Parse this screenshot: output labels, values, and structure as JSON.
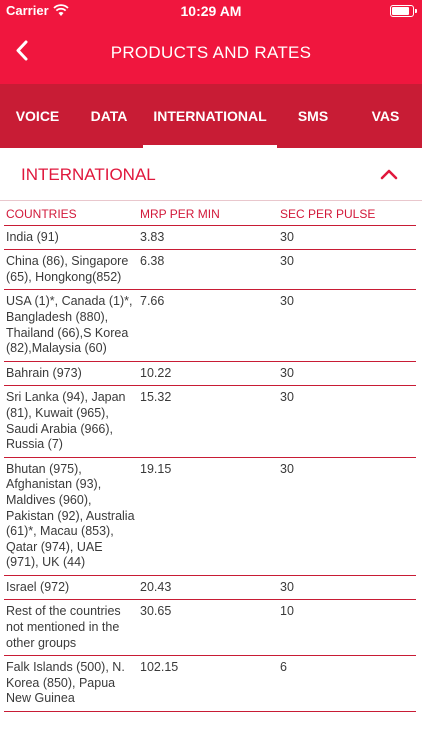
{
  "status_bar": {
    "carrier": "Carrier",
    "time": "10:29 AM",
    "battery_level": 0.9
  },
  "nav": {
    "title": "PRODUCTS AND RATES",
    "back_icon": "chevron-left-icon"
  },
  "tabs": [
    {
      "label": "VOICE",
      "active": false
    },
    {
      "label": "DATA",
      "active": false
    },
    {
      "label": "INTERNATIONAL",
      "active": true
    },
    {
      "label": "SMS",
      "active": false
    },
    {
      "label": "VAS",
      "active": false
    }
  ],
  "section": {
    "title": "INTERNATIONAL",
    "toggle_icon": "chevron-up-icon"
  },
  "table": {
    "headers": [
      "COUNTRIES",
      "MRP PER MIN",
      "SEC PER PULSE"
    ],
    "rows": [
      {
        "country": "India (91)",
        "mrp": "3.83",
        "pulse": "30"
      },
      {
        "country": "China (86), Singapore (65), Hongkong(852)",
        "mrp": "6.38",
        "pulse": "30"
      },
      {
        "country": "USA (1)*, Canada (1)*, Bangladesh (880), Thailand (66),S Korea (82),Malaysia (60)",
        "mrp": "7.66",
        "pulse": "30"
      },
      {
        "country": "Bahrain (973)",
        "mrp": "10.22",
        "pulse": "30"
      },
      {
        "country": "Sri Lanka (94), Japan (81), Kuwait (965), Saudi Arabia (966), Russia (7)",
        "mrp": "15.32",
        "pulse": "30"
      },
      {
        "country": "Bhutan (975), Afghanistan (93), Maldives (960), Pakistan (92), Australia (61)*, Macau (853), Qatar (974), UAE (971), UK (44)",
        "mrp": "19.15",
        "pulse": "30"
      },
      {
        "country": "Israel (972)",
        "mrp": "20.43",
        "pulse": "30"
      },
      {
        "country": "Rest of the countries not mentioned in the other groups",
        "mrp": "30.65",
        "pulse": "10"
      },
      {
        "country": "Falk Islands (500), N. Korea (850), Papua New Guinea",
        "mrp": "102.15",
        "pulse": "6"
      }
    ]
  },
  "colors": {
    "primary": "#f0163e",
    "tab_bar": "#c81c35",
    "accent_text": "#e0173c"
  }
}
